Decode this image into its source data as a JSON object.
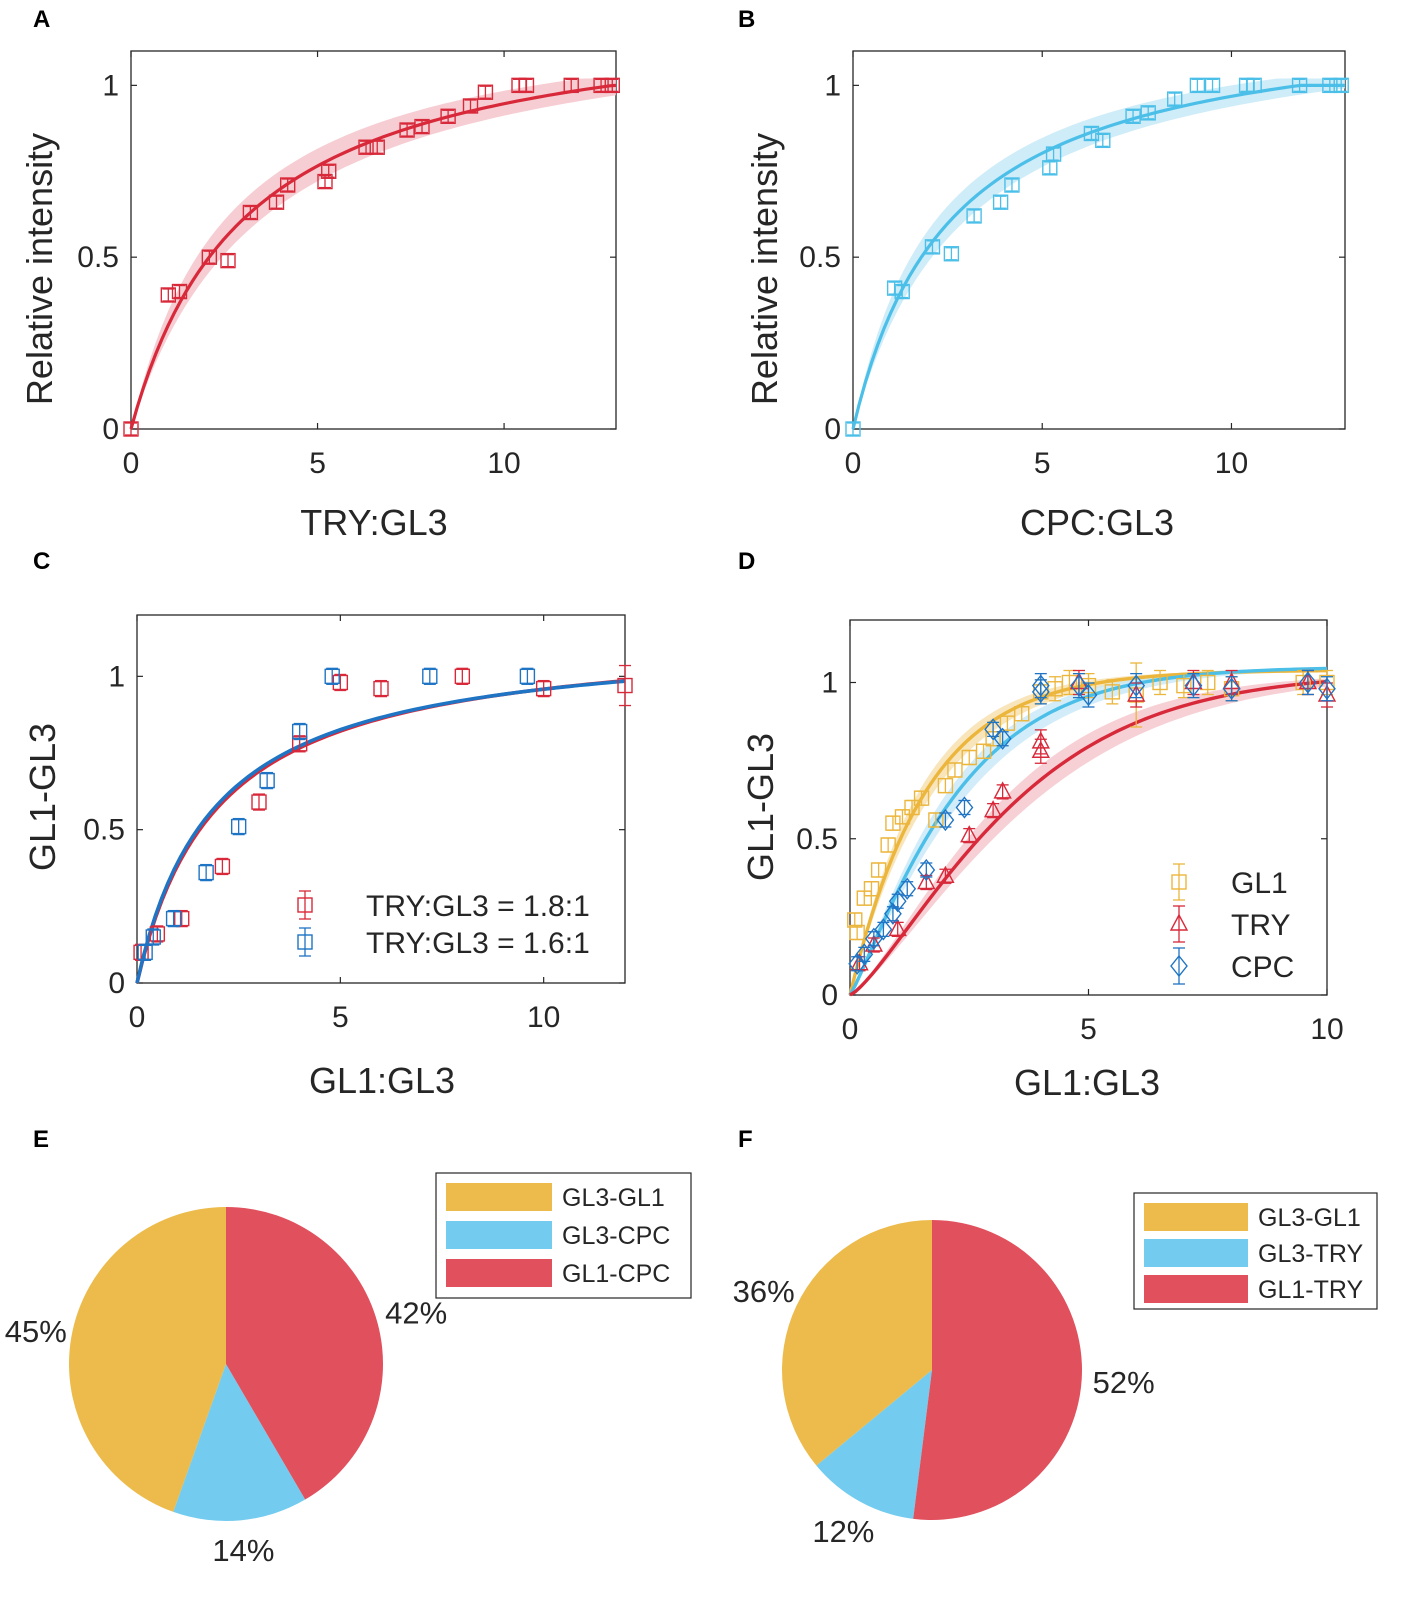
{
  "colors": {
    "red": "#d8293a",
    "red_band": "#f4c4ca",
    "cyan": "#4bbfe8",
    "cyan_band": "#c7e9f8",
    "blue": "#1f74c4",
    "yellow": "#ecb63d",
    "pie_yellow": "#ecbb4b",
    "pie_cyan": "#73cbef",
    "pie_red": "#e1505d",
    "axis": "#262626"
  },
  "panels": {
    "a": {
      "letter": "A"
    },
    "b": {
      "letter": "B"
    },
    "c": {
      "letter": "C"
    },
    "d": {
      "letter": "D"
    },
    "e": {
      "letter": "E"
    },
    "f": {
      "letter": "F"
    }
  },
  "chart_data": [
    {
      "id": "a",
      "type": "scatter",
      "title": "",
      "xlabel": "TRY:GL3",
      "ylabel": "Relative intensity",
      "xlim": [
        0,
        13
      ],
      "ylim": [
        0,
        1.1
      ],
      "xticks": [
        0,
        5,
        10
      ],
      "xtick_labels": [
        "0",
        "5",
        "10"
      ],
      "yticks": [
        0,
        0.5,
        1
      ],
      "ytick_labels": [
        "0",
        "0.5",
        "1"
      ],
      "marker": "square",
      "color": "red",
      "points": [
        [
          0,
          0
        ],
        [
          1.0,
          0.39
        ],
        [
          1.3,
          0.4
        ],
        [
          2.1,
          0.5
        ],
        [
          2.6,
          0.49
        ],
        [
          3.2,
          0.63
        ],
        [
          3.9,
          0.66
        ],
        [
          4.2,
          0.71
        ],
        [
          5.2,
          0.72
        ],
        [
          5.3,
          0.75
        ],
        [
          6.3,
          0.82
        ],
        [
          6.6,
          0.82
        ],
        [
          7.4,
          0.87
        ],
        [
          7.8,
          0.88
        ],
        [
          8.5,
          0.91
        ],
        [
          9.1,
          0.94
        ],
        [
          9.5,
          0.98
        ],
        [
          10.4,
          1.0
        ],
        [
          10.6,
          1.0
        ],
        [
          11.8,
          1.0
        ],
        [
          12.6,
          1.0
        ],
        [
          12.9,
          1.0
        ]
      ],
      "fit": {
        "type": "saturation",
        "k": 3.1,
        "vmax": 1.24,
        "band_lo_k": 3.6,
        "band_hi_k": 2.6
      }
    },
    {
      "id": "b",
      "type": "scatter",
      "title": "",
      "xlabel": "CPC:GL3",
      "ylabel": "Relative intensity",
      "xlim": [
        0,
        13
      ],
      "ylim": [
        0,
        1.1
      ],
      "xticks": [
        0,
        5,
        10
      ],
      "xtick_labels": [
        "0",
        "5",
        "10"
      ],
      "yticks": [
        0,
        0.5,
        1
      ],
      "ytick_labels": [
        "0",
        "0.5",
        "1"
      ],
      "marker": "square",
      "color": "cyan",
      "points": [
        [
          0,
          0
        ],
        [
          1.1,
          0.41
        ],
        [
          1.3,
          0.4
        ],
        [
          2.1,
          0.53
        ],
        [
          2.6,
          0.51
        ],
        [
          3.2,
          0.62
        ],
        [
          3.9,
          0.66
        ],
        [
          4.2,
          0.71
        ],
        [
          5.2,
          0.76
        ],
        [
          5.3,
          0.8
        ],
        [
          6.3,
          0.86
        ],
        [
          6.6,
          0.84
        ],
        [
          7.4,
          0.91
        ],
        [
          7.8,
          0.92
        ],
        [
          8.5,
          0.96
        ],
        [
          9.1,
          1.0
        ],
        [
          9.5,
          1.0
        ],
        [
          10.4,
          1.0
        ],
        [
          10.6,
          1.0
        ],
        [
          11.8,
          1.0
        ],
        [
          12.6,
          1.0
        ],
        [
          12.9,
          1.0
        ]
      ],
      "fit": {
        "type": "saturation",
        "k": 2.6,
        "vmax": 1.22,
        "band_lo_k": 3.0,
        "band_hi_k": 2.2
      }
    },
    {
      "id": "c",
      "type": "scatter",
      "title": "",
      "xlabel": "GL1:GL3",
      "ylabel": "GL1-GL3",
      "xlim": [
        0,
        12
      ],
      "ylim": [
        0,
        1.2
      ],
      "xticks": [
        0,
        5,
        10
      ],
      "xtick_labels": [
        "0",
        "5",
        "10"
      ],
      "yticks": [
        0,
        0.5,
        1
      ],
      "ytick_labels": [
        "0",
        "0.5",
        "1"
      ],
      "series": [
        {
          "name": "TRY:GL3 = 1.8:1",
          "color": "red",
          "marker": "square",
          "points": [
            [
              0.1,
              0.1
            ],
            [
              0.5,
              0.16
            ],
            [
              1.1,
              0.21
            ],
            [
              2.1,
              0.38
            ],
            [
              3.0,
              0.59
            ],
            [
              4.0,
              0.78
            ],
            [
              5.0,
              0.98
            ],
            [
              6.0,
              0.96
            ],
            [
              8.0,
              1.0
            ],
            [
              10.0,
              0.96
            ],
            [
              12.0,
              0.97
            ]
          ]
        },
        {
          "name": "TRY:GL3 = 1.6:1",
          "color": "blue",
          "marker": "square",
          "points": [
            [
              0.2,
              0.1
            ],
            [
              0.4,
              0.15
            ],
            [
              0.9,
              0.21
            ],
            [
              1.7,
              0.36
            ],
            [
              2.5,
              0.51
            ],
            [
              3.2,
              0.66
            ],
            [
              4.0,
              0.82
            ],
            [
              4.8,
              1.0
            ],
            [
              7.2,
              1.0
            ],
            [
              9.6,
              1.0
            ]
          ]
        }
      ],
      "fits": [
        {
          "color": "red",
          "k": 2.0,
          "vmax": 1.15
        },
        {
          "color": "blue",
          "k": 1.9,
          "vmax": 1.14
        }
      ],
      "legend_position": "bottom-right"
    },
    {
      "id": "d",
      "type": "scatter",
      "title": "",
      "xlabel": "GL1:GL3",
      "ylabel": "GL1-GL3",
      "xlim": [
        0,
        10
      ],
      "ylim": [
        0,
        1.2
      ],
      "xticks": [
        0,
        5,
        10
      ],
      "xtick_labels": [
        "0",
        "5",
        "10"
      ],
      "yticks": [
        0,
        0.5,
        1
      ],
      "ytick_labels": [
        "0",
        "0.5",
        "1"
      ],
      "series": [
        {
          "name": "GL1",
          "color": "yellow",
          "marker": "square",
          "points": [
            [
              0.1,
              0.24
            ],
            [
              0.15,
              0.2
            ],
            [
              0.3,
              0.31
            ],
            [
              0.45,
              0.34
            ],
            [
              0.6,
              0.4
            ],
            [
              0.8,
              0.48
            ],
            [
              0.9,
              0.55
            ],
            [
              1.1,
              0.57
            ],
            [
              1.3,
              0.6
            ],
            [
              1.5,
              0.63
            ],
            [
              1.8,
              0.56
            ],
            [
              2.0,
              0.67
            ],
            [
              2.2,
              0.72
            ],
            [
              2.5,
              0.76
            ],
            [
              2.8,
              0.78
            ],
            [
              3.0,
              0.82
            ],
            [
              3.3,
              0.87
            ],
            [
              3.6,
              0.9
            ],
            [
              4.0,
              0.97
            ],
            [
              4.3,
              0.98
            ],
            [
              4.6,
              1.0
            ],
            [
              5.0,
              0.99
            ],
            [
              5.5,
              0.97
            ],
            [
              6.0,
              0.96
            ],
            [
              6.5,
              1.0
            ],
            [
              7.0,
              0.99
            ],
            [
              7.5,
              1.0
            ],
            [
              8.0,
              0.98
            ],
            [
              9.5,
              1.0
            ],
            [
              10.0,
              1.0
            ]
          ]
        },
        {
          "name": "TRY",
          "color": "red",
          "marker": "triangle",
          "points": [
            [
              0.2,
              0.1
            ],
            [
              0.5,
              0.16
            ],
            [
              1.0,
              0.21
            ],
            [
              1.6,
              0.36
            ],
            [
              2.0,
              0.38
            ],
            [
              2.5,
              0.51
            ],
            [
              3.0,
              0.59
            ],
            [
              3.2,
              0.65
            ],
            [
              4.0,
              0.78
            ],
            [
              4.0,
              0.81
            ],
            [
              4.8,
              1.0
            ],
            [
              6.0,
              0.96
            ],
            [
              7.2,
              1.0
            ],
            [
              8.0,
              1.0
            ],
            [
              9.6,
              1.0
            ],
            [
              10.0,
              0.96
            ]
          ]
        },
        {
          "name": "CPC",
          "color": "blue",
          "marker": "diamond",
          "points": [
            [
              0.15,
              0.1
            ],
            [
              0.3,
              0.13
            ],
            [
              0.5,
              0.18
            ],
            [
              0.7,
              0.21
            ],
            [
              0.9,
              0.26
            ],
            [
              1.0,
              0.3
            ],
            [
              1.2,
              0.34
            ],
            [
              1.6,
              0.4
            ],
            [
              2.0,
              0.56
            ],
            [
              2.4,
              0.6
            ],
            [
              3.0,
              0.85
            ],
            [
              3.2,
              0.82
            ],
            [
              4.0,
              0.97
            ],
            [
              4.0,
              0.99
            ],
            [
              4.8,
              0.99
            ],
            [
              5.0,
              0.96
            ],
            [
              6.0,
              0.99
            ],
            [
              7.2,
              0.99
            ],
            [
              8.0,
              0.98
            ],
            [
              9.6,
              1.0
            ],
            [
              10.0,
              0.98
            ]
          ]
        }
      ],
      "fits": [
        {
          "color": "yellow",
          "a": 1.04,
          "rate": 0.62,
          "hill": 1.0
        },
        {
          "color": "cyan",
          "a": 1.05,
          "rate": 0.43,
          "hill": 1.15
        },
        {
          "color": "red",
          "a": 1.03,
          "rate": 0.27,
          "hill": 1.3
        }
      ],
      "legend_position": "bottom-right"
    },
    {
      "id": "e",
      "type": "pie",
      "title": "",
      "slices": [
        {
          "label": "GL3-GL1",
          "value": 45,
          "pct_label": "45%",
          "color": "pie_yellow"
        },
        {
          "label": "GL3-CPC",
          "value": 14,
          "pct_label": "14%",
          "color": "pie_cyan"
        },
        {
          "label": "GL1-CPC",
          "value": 42,
          "pct_label": "42%",
          "color": "pie_red"
        }
      ],
      "legend_position": "top-right"
    },
    {
      "id": "f",
      "type": "pie",
      "title": "",
      "slices": [
        {
          "label": "GL3-GL1",
          "value": 36,
          "pct_label": "36%",
          "color": "pie_yellow"
        },
        {
          "label": "GL3-TRY",
          "value": 12,
          "pct_label": "12%",
          "color": "pie_cyan"
        },
        {
          "label": "GL1-TRY",
          "value": 52,
          "pct_label": "52%",
          "color": "pie_red"
        }
      ],
      "legend_position": "top-right"
    }
  ]
}
